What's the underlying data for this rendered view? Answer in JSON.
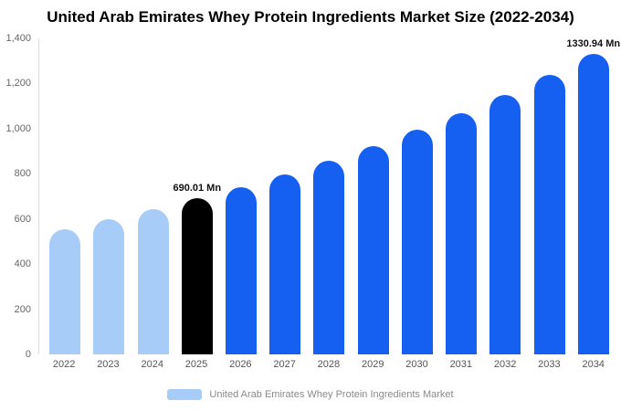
{
  "chart_data": {
    "type": "bar",
    "title": "United Arab Emirates Whey Protein Ingredients Market Size (2022-2034)",
    "categories": [
      "2022",
      "2023",
      "2024",
      "2025",
      "2026",
      "2027",
      "2028",
      "2029",
      "2030",
      "2031",
      "2032",
      "2033",
      "2034"
    ],
    "values": [
      556,
      598,
      643,
      690.01,
      742,
      799,
      859,
      924,
      994,
      1070,
      1151,
      1238,
      1330.94
    ],
    "bar_colors": [
      "#a6ccf7",
      "#a6ccf7",
      "#a6ccf7",
      "#000000",
      "#1560f0",
      "#1560f0",
      "#1560f0",
      "#1560f0",
      "#1560f0",
      "#1560f0",
      "#1560f0",
      "#1560f0",
      "#1560f0"
    ],
    "data_labels": {
      "2025": "690.01 Mn",
      "2034": "1330.94 Mn"
    },
    "ylim": [
      0,
      1400
    ],
    "yticks": [
      "0",
      "200",
      "400",
      "600",
      "800",
      "1,000",
      "1,200",
      "1,400"
    ],
    "ytick_values": [
      0,
      200,
      400,
      600,
      800,
      1000,
      1200,
      1400
    ],
    "xlabel": "",
    "ylabel": "",
    "grid": false,
    "legend_position": "bottom",
    "legend": "United Arab Emirates Whey Protein Ingredients Market",
    "legend_color": "#a6ccf7",
    "unit": "Mn"
  }
}
